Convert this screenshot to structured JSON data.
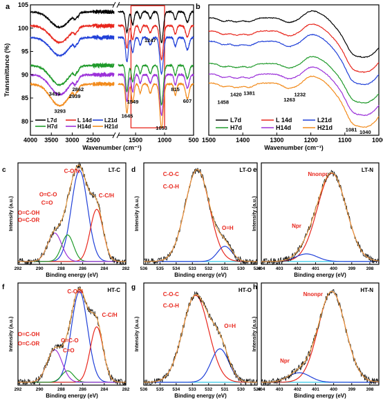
{
  "colors": {
    "L7d": "#000000",
    "L14d": "#e8261c",
    "L21d": "#1f3fd8",
    "H7d": "#1f9a2a",
    "H14d": "#9b30d9",
    "H21d": "#f28a1a",
    "raw": "#111111",
    "envelope": "#e8261c",
    "peakA": "#1f3fd8",
    "peakB": "#1f9a2a",
    "peakC": "#9b30d9",
    "peakD": "#e8261c",
    "baseline": "#30c8e8",
    "highlight": "#e8261c",
    "annot": "#e8261c"
  },
  "legend_labels": [
    "L7d",
    "L 14d",
    "L21d",
    "H7d",
    "H14d",
    "H21d"
  ],
  "chart_data": [
    {
      "id": "a",
      "letter": "a",
      "type": "line",
      "xlabel": "Wavenumber (cm⁻¹)",
      "ylabel": "Transmittance (%)",
      "xlim": [
        4000,
        500
      ],
      "ylim": [
        77,
        105
      ],
      "xticks": [
        "4000",
        "3500",
        "3000",
        "2500",
        "1500",
        "1000",
        "500"
      ],
      "yticks": [
        "80",
        "85",
        "90",
        "95",
        "100",
        "105"
      ],
      "axis_break": [
        2000,
        1800
      ],
      "series": [
        {
          "name": "L7d",
          "offset": 103.5
        },
        {
          "name": "L14d",
          "offset": 100.5
        },
        {
          "name": "L21d",
          "offset": 98.0
        },
        {
          "name": "H7d",
          "offset": 92.0
        },
        {
          "name": "H14d",
          "offset": 90.0
        },
        {
          "name": "H21d",
          "offset": 88.0
        }
      ],
      "annotations": [
        {
          "text": "3419",
          "x": 3419,
          "y": 85.5
        },
        {
          "text": "3293",
          "x": 3293,
          "y": 81.8
        },
        {
          "text": "2939",
          "x": 2939,
          "y": 85.0
        },
        {
          "text": "2862",
          "x": 2862,
          "y": 86.5
        },
        {
          "text": "1247",
          "x": 1247,
          "y": 97.0
        },
        {
          "text": "1549",
          "x": 1549,
          "y": 83.8
        },
        {
          "text": "1645",
          "x": 1645,
          "y": 80.8
        },
        {
          "text": "815",
          "x": 815,
          "y": 86.5
        },
        {
          "text": "607",
          "x": 607,
          "y": 84.0
        },
        {
          "text": "1053",
          "x": 1053,
          "y": 78.2
        }
      ]
    },
    {
      "id": "b",
      "letter": "b",
      "type": "line",
      "xlabel": "Wavenumber (cm⁻¹)",
      "ylabel": "",
      "xlim": [
        1500,
        1000
      ],
      "ylim": [
        0,
        100
      ],
      "xticks": [
        "1500",
        "1400",
        "1300",
        "1200",
        "1100",
        "1000"
      ],
      "series": [
        {
          "name": "L7d",
          "offset": 90
        },
        {
          "name": "L14d",
          "offset": 80
        },
        {
          "name": "L21d",
          "offset": 72
        },
        {
          "name": "H7d",
          "offset": 55
        },
        {
          "name": "H14d",
          "offset": 47
        },
        {
          "name": "H21d",
          "offset": 40
        }
      ],
      "annotations": [
        {
          "text": "1458",
          "x": 1458,
          "y": 24
        },
        {
          "text": "1420",
          "x": 1420,
          "y": 30
        },
        {
          "text": "1381",
          "x": 1381,
          "y": 31
        },
        {
          "text": "1263",
          "x": 1263,
          "y": 26
        },
        {
          "text": "1232",
          "x": 1232,
          "y": 30
        },
        {
          "text": "1081",
          "x": 1081,
          "y": 3
        },
        {
          "text": "1040",
          "x": 1040,
          "y": 1
        }
      ]
    },
    {
      "id": "c",
      "letter": "c",
      "type": "line",
      "tag": "LT-C",
      "xlabel": "Binding energy (eV)",
      "ylabel": "Intensity (a.u.)",
      "xlim": [
        292,
        282
      ],
      "ylim": [
        0,
        1.07
      ],
      "xticks": [
        "292",
        "290",
        "288",
        "286",
        "284",
        "282"
      ],
      "peaks": [
        {
          "center": 286.3,
          "height": 0.96,
          "width": 0.75,
          "color": "peakA"
        },
        {
          "center": 284.7,
          "height": 0.55,
          "width": 0.6,
          "color": "peakD"
        },
        {
          "center": 287.4,
          "height": 0.28,
          "width": 0.55,
          "color": "peakB"
        },
        {
          "center": 288.6,
          "height": 0.3,
          "width": 0.65,
          "color": "peakC"
        }
      ],
      "labels": [
        "C-O/N",
        "O=C-O",
        "C=O",
        "O=C-OH",
        "O=C-OR",
        "C-C/H"
      ]
    },
    {
      "id": "d",
      "letter": "d",
      "type": "line",
      "tag": "LT-O",
      "xlabel": "Binding energy (eV)",
      "ylabel": "Intensity (a.u.)",
      "xlim": [
        536,
        529
      ],
      "ylim": [
        0,
        1.07
      ],
      "xticks": [
        "536",
        "535",
        "534",
        "533",
        "532",
        "531",
        "530",
        "529"
      ],
      "peaks": [
        {
          "center": 532.7,
          "height": 0.97,
          "width": 0.75,
          "color": "peakD"
        },
        {
          "center": 531.0,
          "height": 0.16,
          "width": 0.45,
          "color": "peakA"
        }
      ],
      "labels": [
        "C-O-C",
        "C-O-H",
        "O=H"
      ]
    },
    {
      "id": "e",
      "letter": "e",
      "type": "line",
      "tag": "LT-N",
      "xlabel": "Binding energy (eV)",
      "ylabel": "Intensity (a.u.)",
      "xlim": [
        404,
        397.5
      ],
      "ylim": [
        0,
        1.07
      ],
      "xticks": [
        "404",
        "403",
        "402",
        "401",
        "400",
        "399",
        "398"
      ],
      "peaks": [
        {
          "center": 400.1,
          "height": 0.93,
          "width": 0.8,
          "color": "peakD"
        },
        {
          "center": 401.5,
          "height": 0.08,
          "width": 0.6,
          "color": "peakA"
        }
      ],
      "labels": [
        "Nnonpr",
        "Npr"
      ]
    },
    {
      "id": "f",
      "letter": "f",
      "type": "line",
      "tag": "HT-C",
      "xlabel": "Binding energy (eV)",
      "ylabel": "Intensity (a.u.)",
      "xlim": [
        292,
        282
      ],
      "ylim": [
        0,
        1.07
      ],
      "xticks": [
        "292",
        "290",
        "288",
        "286",
        "284",
        "282"
      ],
      "peaks": [
        {
          "center": 286.3,
          "height": 0.95,
          "width": 0.75,
          "color": "peakA"
        },
        {
          "center": 284.7,
          "height": 0.58,
          "width": 0.6,
          "color": "peakD"
        },
        {
          "center": 287.4,
          "height": 0.12,
          "width": 0.55,
          "color": "peakB"
        },
        {
          "center": 288.6,
          "height": 0.34,
          "width": 0.7,
          "color": "peakC"
        }
      ],
      "labels": [
        "C-O/N",
        "O=C-OH",
        "O=C-OR",
        "O=C-O",
        "C=O",
        "C-C/H"
      ]
    },
    {
      "id": "g",
      "letter": "g",
      "type": "line",
      "tag": "HT-O",
      "xlabel": "Binding energy (eV)",
      "ylabel": "Intensity (a.u.)",
      "xlim": [
        536,
        529
      ],
      "ylim": [
        0,
        1.07
      ],
      "xticks": [
        "536",
        "535",
        "534",
        "533",
        "532",
        "531",
        "530",
        "529"
      ],
      "peaks": [
        {
          "center": 532.8,
          "height": 0.91,
          "width": 0.8,
          "color": "peakD"
        },
        {
          "center": 531.3,
          "height": 0.35,
          "width": 0.55,
          "color": "peakA"
        }
      ],
      "labels": [
        "C-O-C",
        "C-O-H",
        "O=H"
      ]
    },
    {
      "id": "h",
      "letter": "h",
      "type": "line",
      "tag": "HT-N",
      "xlabel": "Binding energy (eV)",
      "ylabel": "Intensity (a.u.)",
      "xlim": [
        404,
        397.5
      ],
      "ylim": [
        0,
        1.07
      ],
      "xticks": [
        "404",
        "403",
        "402",
        "401",
        "400",
        "399",
        "398"
      ],
      "peaks": [
        {
          "center": 400.1,
          "height": 0.95,
          "width": 0.75,
          "color": "peakD"
        },
        {
          "center": 401.9,
          "height": 0.1,
          "width": 0.6,
          "color": "peakA"
        }
      ],
      "labels": [
        "Nnonpr",
        "Npr"
      ]
    }
  ]
}
